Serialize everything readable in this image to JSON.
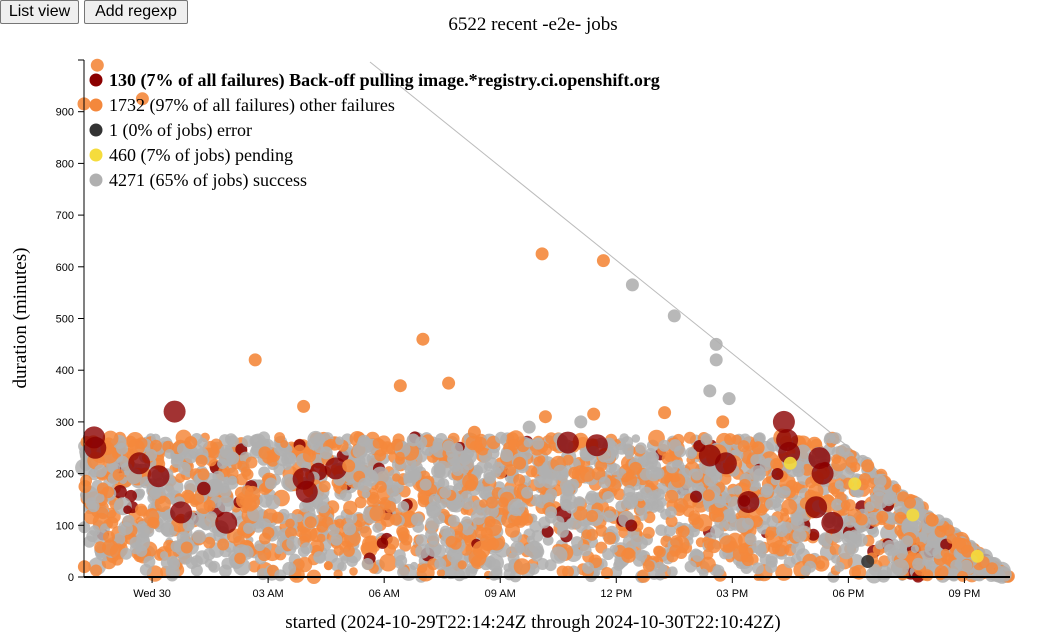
{
  "toolbar": {
    "list_view_label": "List view",
    "add_regexp_label": "Add regexp"
  },
  "chart_data": {
    "type": "scatter",
    "title": "6522 recent -e2e- jobs",
    "xlabel": "started (2024-10-29T22:14:24Z through 2024-10-30T22:10:42Z)",
    "ylabel": "duration (minutes)",
    "x_range": [
      "2024-10-29T22:14:24Z",
      "2024-10-30T22:10:42Z"
    ],
    "ylim": [
      0,
      1000
    ],
    "x_ticks": [
      "Wed 30",
      "03 AM",
      "06 AM",
      "09 AM",
      "12 PM",
      "03 PM",
      "06 PM",
      "09 PM"
    ],
    "y_ticks": [
      0,
      100,
      200,
      300,
      400,
      500,
      600,
      700,
      800,
      900
    ],
    "grid": false,
    "legend_position": "top-left",
    "series": [
      {
        "name": "130 (7% of all failures) Back-off pulling image.*registry.ci.openshift.org",
        "color": "#8b0000",
        "bold": true,
        "points": [
          {
            "x": "2024-10-29T22:30:00Z",
            "y": 270
          },
          {
            "x": "2024-10-29T22:32:00Z",
            "y": 250
          },
          {
            "x": "2024-10-29T23:40:00Z",
            "y": 220
          },
          {
            "x": "2024-10-30T00:10:00Z",
            "y": 195
          },
          {
            "x": "2024-10-30T00:35:00Z",
            "y": 320
          },
          {
            "x": "2024-10-30T00:45:00Z",
            "y": 125
          },
          {
            "x": "2024-10-30T01:55:00Z",
            "y": 105
          },
          {
            "x": "2024-10-30T03:55:00Z",
            "y": 190
          },
          {
            "x": "2024-10-30T04:00:00Z",
            "y": 165
          },
          {
            "x": "2024-10-30T04:45:00Z",
            "y": 210
          },
          {
            "x": "2024-10-30T10:45:00Z",
            "y": 260
          },
          {
            "x": "2024-10-30T11:30:00Z",
            "y": 255
          },
          {
            "x": "2024-10-30T14:25:00Z",
            "y": 235
          },
          {
            "x": "2024-10-30T14:50:00Z",
            "y": 220
          },
          {
            "x": "2024-10-30T15:25:00Z",
            "y": 145
          },
          {
            "x": "2024-10-30T16:20:00Z",
            "y": 300
          },
          {
            "x": "2024-10-30T16:25:00Z",
            "y": 265
          },
          {
            "x": "2024-10-30T16:28:00Z",
            "y": 240
          },
          {
            "x": "2024-10-30T17:15:00Z",
            "y": 230
          },
          {
            "x": "2024-10-30T17:20:00Z",
            "y": 200
          },
          {
            "x": "2024-10-30T17:10:00Z",
            "y": 135
          },
          {
            "x": "2024-10-30T17:35:00Z",
            "y": 105
          }
        ]
      },
      {
        "name": "1732 (97% of all failures) other failures",
        "color": "#f4883c",
        "bold": false,
        "points": [
          {
            "x": "2024-10-29T22:14:24Z",
            "y": 915
          },
          {
            "x": "2024-10-29T22:15:00Z",
            "y": 20
          },
          {
            "x": "2024-10-29T22:16:00Z",
            "y": 175
          },
          {
            "x": "2024-10-29T22:35:00Z",
            "y": 990
          },
          {
            "x": "2024-10-29T23:45:00Z",
            "y": 925
          },
          {
            "x": "2024-10-30T02:40:00Z",
            "y": 420
          },
          {
            "x": "2024-10-30T03:55:00Z",
            "y": 330
          },
          {
            "x": "2024-10-30T06:25:00Z",
            "y": 370
          },
          {
            "x": "2024-10-30T07:00:00Z",
            "y": 460
          },
          {
            "x": "2024-10-30T07:40:00Z",
            "y": 375
          },
          {
            "x": "2024-10-30T10:05:00Z",
            "y": 625
          },
          {
            "x": "2024-10-30T11:40:00Z",
            "y": 612
          },
          {
            "x": "2024-10-30T10:10:00Z",
            "y": 310
          },
          {
            "x": "2024-10-30T11:25:00Z",
            "y": 315
          },
          {
            "x": "2024-10-30T13:15:00Z",
            "y": 318
          },
          {
            "x": "2024-10-30T14:45:00Z",
            "y": 300
          },
          {
            "x": "2024-10-30T01:00:00Z",
            "y": 260
          },
          {
            "x": "2024-10-30T02:55:00Z",
            "y": 240
          },
          {
            "x": "2024-10-30T05:05:00Z",
            "y": 215
          },
          {
            "x": "2024-10-30T08:20:00Z",
            "y": 280
          },
          {
            "x": "2024-10-30T09:30:00Z",
            "y": 220
          },
          {
            "x": "2024-10-30T12:30:00Z",
            "y": 210
          },
          {
            "x": "2024-10-30T15:40:00Z",
            "y": 250
          },
          {
            "x": "2024-10-30T18:30:00Z",
            "y": 215
          },
          {
            "x": "2024-10-30T20:10:00Z",
            "y": 110
          },
          {
            "x": "2024-10-30T21:05:00Z",
            "y": 50
          }
        ]
      },
      {
        "name": "1 (0% of jobs) error",
        "color": "#333333",
        "bold": false,
        "points": [
          {
            "x": "2024-10-30T18:30:00Z",
            "y": 30
          }
        ]
      },
      {
        "name": "460 (7% of jobs) pending",
        "color": "#f5dc3c",
        "bold": false,
        "points": [
          {
            "x": "2024-10-30T16:30:00Z",
            "y": 220
          },
          {
            "x": "2024-10-30T18:10:00Z",
            "y": 180
          },
          {
            "x": "2024-10-30T19:40:00Z",
            "y": 120
          },
          {
            "x": "2024-10-30T21:20:00Z",
            "y": 40
          }
        ]
      },
      {
        "name": "4271 (65% of jobs) success",
        "color": "#b0b0b0",
        "bold": false,
        "points": [
          {
            "x": "2024-10-30T12:25:00Z",
            "y": 565
          },
          {
            "x": "2024-10-30T13:30:00Z",
            "y": 505
          },
          {
            "x": "2024-10-30T14:35:00Z",
            "y": 450
          },
          {
            "x": "2024-10-30T14:35:00Z",
            "y": 420
          },
          {
            "x": "2024-10-30T14:25:00Z",
            "y": 360
          },
          {
            "x": "2024-10-30T14:55:00Z",
            "y": 345
          },
          {
            "x": "2024-10-30T06:45:00Z",
            "y": 265
          },
          {
            "x": "2024-10-30T09:10:00Z",
            "y": 235
          },
          {
            "x": "2024-10-30T09:45:00Z",
            "y": 290
          },
          {
            "x": "2024-10-30T11:05:00Z",
            "y": 300
          },
          {
            "x": "2024-10-30T00:50:00Z",
            "y": 210
          },
          {
            "x": "2024-10-30T02:05:00Z",
            "y": 230
          },
          {
            "x": "2024-10-30T04:30:00Z",
            "y": 240
          },
          {
            "x": "2024-10-29T22:40:00Z",
            "y": 205
          }
        ]
      }
    ]
  }
}
